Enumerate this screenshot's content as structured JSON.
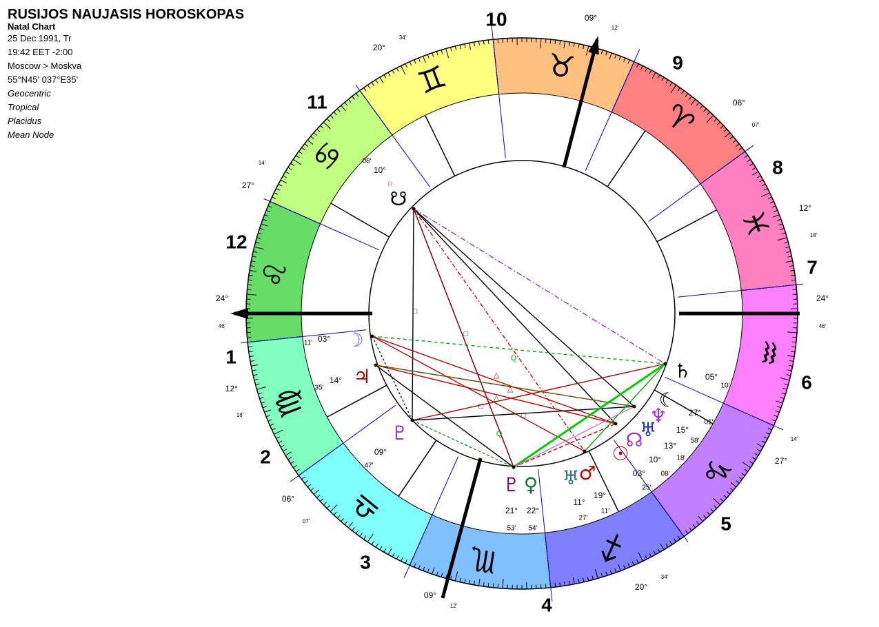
{
  "header": {
    "title": "RUSIJOS NAUJASIS HOROSKOPAS",
    "subtitle": "Natal Chart",
    "lines": [
      "25 Dec 1991, Tr",
      "19:42 EET -2:00",
      "Moscow > Moskva",
      "55°N45' 037°E35'"
    ],
    "settings": [
      "Geocentric",
      "Tropical",
      "Placidus",
      "Mean Node"
    ]
  },
  "house_numbers": [
    "1",
    "2",
    "3",
    "4",
    "5",
    "6",
    "7",
    "8",
    "9",
    "10",
    "11",
    "12"
  ],
  "signs": [
    {
      "glyph": "♌",
      "color": "#66dd66"
    },
    {
      "glyph": "♍",
      "color": "#80ffc0"
    },
    {
      "glyph": "♎",
      "color": "#80ffff"
    },
    {
      "glyph": "♏",
      "color": "#80c0ff"
    },
    {
      "glyph": "♐",
      "color": "#8080ff"
    },
    {
      "glyph": "♑",
      "color": "#c080ff"
    },
    {
      "glyph": "♒",
      "color": "#ff80ff"
    },
    {
      "glyph": "♓",
      "color": "#ff80c0"
    },
    {
      "glyph": "♈",
      "color": "#ff8080"
    },
    {
      "glyph": "♉",
      "color": "#ffc080"
    },
    {
      "glyph": "♊",
      "color": "#ffff80"
    },
    {
      "glyph": "♋",
      "color": "#c0ff80"
    }
  ],
  "cusp_labels": [
    {
      "degree": "24°",
      "minute": "46'"
    },
    {
      "degree": "24°",
      "minute": "46'"
    },
    {
      "degree": "09°",
      "minute": "12'"
    },
    {
      "degree": "09°",
      "minute": "12'"
    },
    {
      "degree": "20°",
      "minute": "34'"
    },
    {
      "degree": "20°",
      "minute": "34'"
    },
    {
      "degree": "06°",
      "minute": "07'"
    },
    {
      "degree": "06°",
      "minute": "07'"
    },
    {
      "degree": "12°",
      "minute": "18'"
    },
    {
      "degree": "12°",
      "minute": "18'"
    },
    {
      "degree": "27°",
      "minute": "14'"
    },
    {
      "degree": "27°",
      "minute": "14'"
    }
  ],
  "planets": [
    {
      "glyph": "♄",
      "degree": "05°",
      "minute": "10'",
      "color": "#000000"
    },
    {
      "glyph": "☾",
      "degree": "27°",
      "minute": "01'",
      "color": "#000000"
    },
    {
      "glyph": "♆",
      "degree": "15°",
      "minute": "58'",
      "color": "#9932cc"
    },
    {
      "glyph": "♅",
      "degree": "13°",
      "minute": "18'",
      "color": "#2030d0"
    },
    {
      "glyph": "☊",
      "degree": "10°",
      "minute": "08'",
      "color": "#9932cc"
    },
    {
      "glyph": "☉",
      "degree": "03°",
      "minute": "25'",
      "color": "#cc0000"
    },
    {
      "glyph": "♂",
      "degree": "19°",
      "minute": "11'",
      "color": "#cc0000"
    },
    {
      "glyph": "♅",
      "degree": "11°",
      "minute": "27'",
      "color": "#2e7080"
    },
    {
      "glyph": "♀",
      "degree": "22°",
      "minute": "54'",
      "color": "#107030"
    },
    {
      "glyph": "♇",
      "degree": "21°",
      "minute": "53'",
      "color": "#800080"
    },
    {
      "glyph": "♇",
      "degree": "09°",
      "minute": "47'",
      "color": "#9932cc"
    },
    {
      "glyph": "♃",
      "degree": "14°",
      "minute": "35'",
      "color": "#b00000"
    },
    {
      "glyph": "☽",
      "degree": "03°",
      "minute": "11'",
      "color": "#6060e0"
    },
    {
      "glyph": "☋",
      "degree": "10°",
      "minute": "08'",
      "color": "#000000"
    }
  ],
  "retrograde": "R",
  "aspect_symbols": [
    "□",
    "□",
    "△",
    "△",
    "Q",
    "Q",
    "□",
    "□",
    "△"
  ]
}
